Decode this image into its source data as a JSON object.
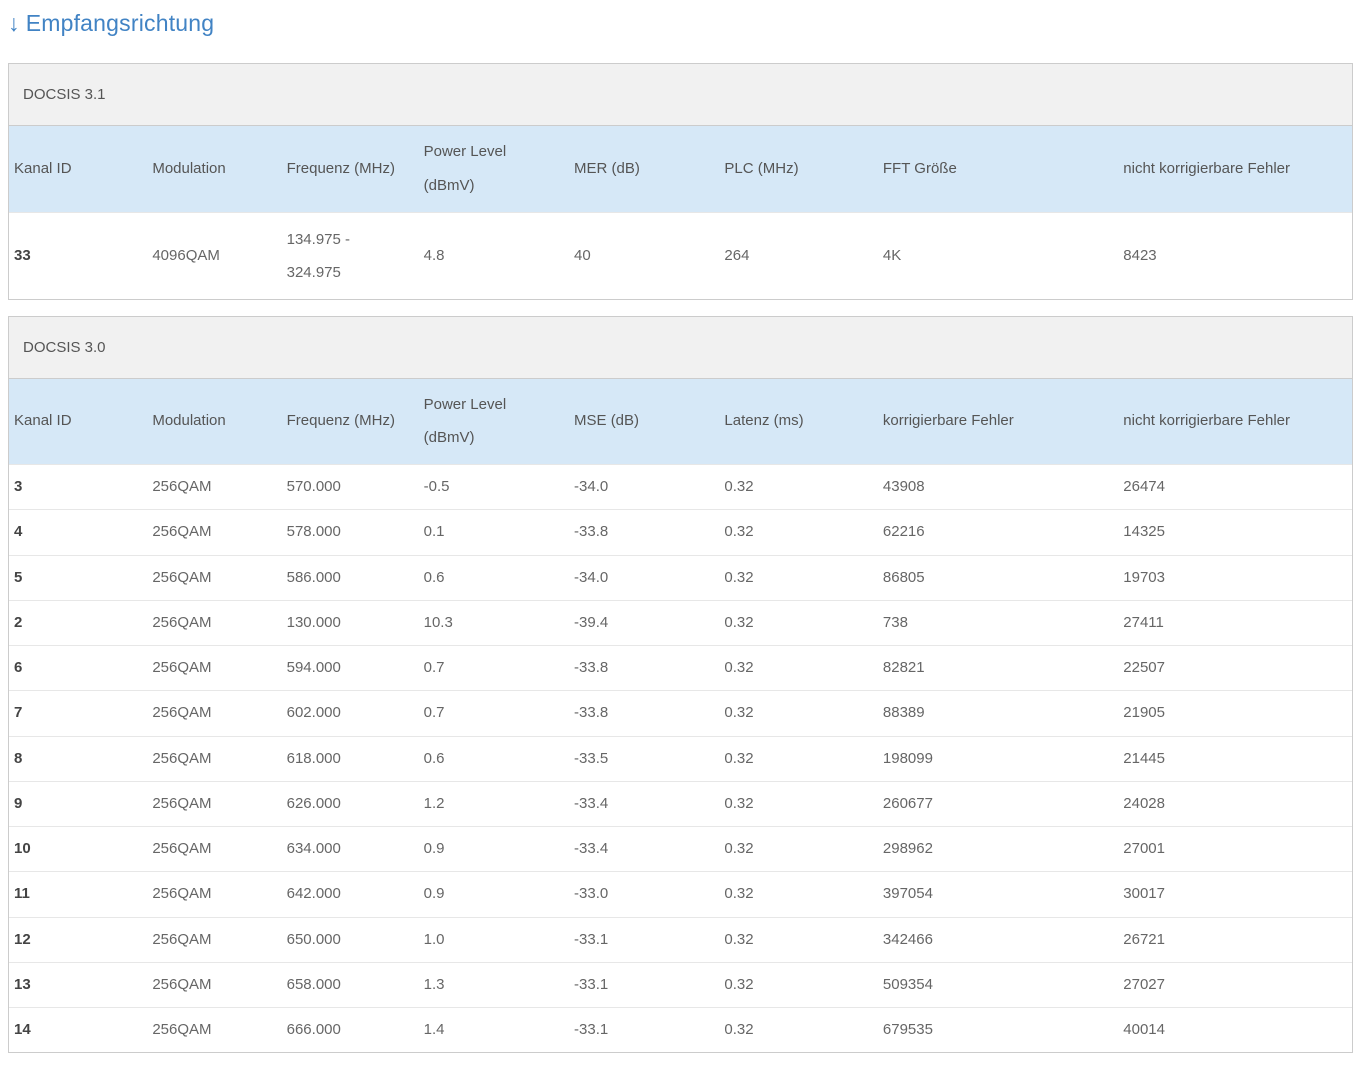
{
  "page": {
    "title": "Empfangsrichtung",
    "title_arrow": "↓"
  },
  "colors": {
    "accent_blue": "#4183c4",
    "table_header_bg": "#d6e8f7",
    "section_header_bg": "#f1f1f1",
    "panel_border": "#cccccc"
  },
  "docsis31": {
    "section_title": "DOCSIS 3.1",
    "columns": [
      "Kanal ID",
      "Modulation",
      "Frequenz (MHz)",
      "Power Level\n(dBmV)",
      "MER (dB)",
      "PLC (MHz)",
      "FFT Größe",
      "nicht korrigierbare Fehler"
    ],
    "rows": [
      [
        "33",
        "4096QAM",
        "134.975 -\n324.975",
        "4.8",
        "40",
        "264",
        "4K",
        "8423"
      ]
    ]
  },
  "docsis30": {
    "section_title": "DOCSIS 3.0",
    "columns": [
      "Kanal ID",
      "Modulation",
      "Frequenz (MHz)",
      "Power Level\n(dBmV)",
      "MSE (dB)",
      "Latenz (ms)",
      "korrigierbare Fehler",
      "nicht korrigierbare Fehler"
    ],
    "rows": [
      [
        "3",
        "256QAM",
        "570.000",
        "-0.5",
        "-34.0",
        "0.32",
        "43908",
        "26474"
      ],
      [
        "4",
        "256QAM",
        "578.000",
        "0.1",
        "-33.8",
        "0.32",
        "62216",
        "14325"
      ],
      [
        "5",
        "256QAM",
        "586.000",
        "0.6",
        "-34.0",
        "0.32",
        "86805",
        "19703"
      ],
      [
        "2",
        "256QAM",
        "130.000",
        "10.3",
        "-39.4",
        "0.32",
        "738",
        "27411"
      ],
      [
        "6",
        "256QAM",
        "594.000",
        "0.7",
        "-33.8",
        "0.32",
        "82821",
        "22507"
      ],
      [
        "7",
        "256QAM",
        "602.000",
        "0.7",
        "-33.8",
        "0.32",
        "88389",
        "21905"
      ],
      [
        "8",
        "256QAM",
        "618.000",
        "0.6",
        "-33.5",
        "0.32",
        "198099",
        "21445"
      ],
      [
        "9",
        "256QAM",
        "626.000",
        "1.2",
        "-33.4",
        "0.32",
        "260677",
        "24028"
      ],
      [
        "10",
        "256QAM",
        "634.000",
        "0.9",
        "-33.4",
        "0.32",
        "298962",
        "27001"
      ],
      [
        "11",
        "256QAM",
        "642.000",
        "0.9",
        "-33.0",
        "0.32",
        "397054",
        "30017"
      ],
      [
        "12",
        "256QAM",
        "650.000",
        "1.0",
        "-33.1",
        "0.32",
        "342466",
        "26721"
      ],
      [
        "13",
        "256QAM",
        "658.000",
        "1.3",
        "-33.1",
        "0.32",
        "509354",
        "27027"
      ],
      [
        "14",
        "256QAM",
        "666.000",
        "1.4",
        "-33.1",
        "0.32",
        "679535",
        "40014"
      ]
    ]
  }
}
